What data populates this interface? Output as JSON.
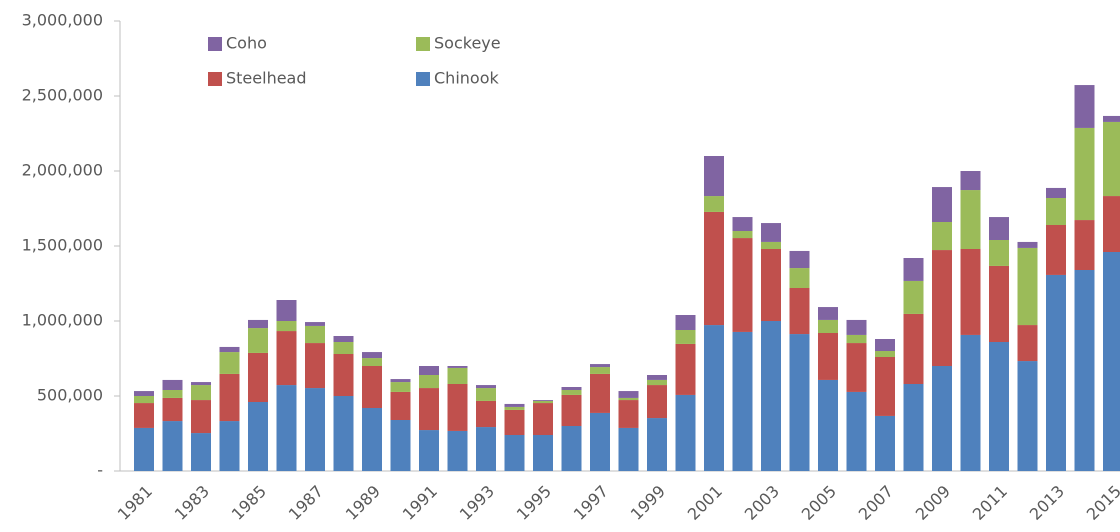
{
  "chart_data": {
    "type": "stacked_bar",
    "categories": [
      "1981",
      null,
      "1983",
      null,
      "1985",
      null,
      "1987",
      null,
      "1989",
      null,
      "1991",
      null,
      "1993",
      null,
      "1995",
      null,
      "1997",
      null,
      "1999",
      null,
      "2001",
      null,
      "2003",
      null,
      "2005",
      null,
      "2007",
      null,
      "2009",
      null,
      "2011",
      null,
      "2013",
      null,
      "2015"
    ],
    "series": [
      {
        "name": "Chinook",
        "color": "#4f81bd",
        "values": [
          287000,
          333000,
          253000,
          333000,
          460000,
          573000,
          553000,
          500000,
          420000,
          340000,
          273000,
          267000,
          293000,
          240000,
          240000,
          300000,
          387000,
          287000,
          353000,
          507000,
          973000,
          927000,
          1000000,
          913000,
          607000,
          527000,
          367000,
          580000,
          700000,
          907000,
          860000,
          733000,
          1307000,
          1340000,
          1460000
        ]
      },
      {
        "name": "Steelhead",
        "color": "#c0504d",
        "values": [
          166000,
          154000,
          220000,
          314000,
          327000,
          360000,
          300000,
          280000,
          280000,
          187000,
          280000,
          313000,
          174000,
          167000,
          213000,
          207000,
          260000,
          186000,
          220000,
          340000,
          754000,
          626000,
          480000,
          307000,
          313000,
          326000,
          393000,
          467000,
          773000,
          573000,
          507000,
          240000,
          333000,
          333000,
          373000
        ]
      },
      {
        "name": "Sockeye",
        "color": "#9bbb59",
        "values": [
          47000,
          53000,
          100000,
          146000,
          166000,
          67000,
          114000,
          80000,
          53000,
          66000,
          87000,
          107000,
          86000,
          20000,
          14000,
          33000,
          46000,
          14000,
          34000,
          93000,
          106000,
          47000,
          47000,
          133000,
          87000,
          54000,
          40000,
          220000,
          187000,
          393000,
          173000,
          514000,
          180000,
          614000,
          494000
        ]
      },
      {
        "name": "Coho",
        "color": "#8064a2",
        "values": [
          33000,
          67000,
          20000,
          34000,
          54000,
          140000,
          26000,
          40000,
          40000,
          20000,
          60000,
          13000,
          20000,
          20000,
          6000,
          20000,
          20000,
          46000,
          33000,
          100000,
          267000,
          93000,
          126000,
          114000,
          86000,
          100000,
          80000,
          153000,
          233000,
          127000,
          153000,
          40000,
          67000,
          286000,
          40000
        ]
      }
    ],
    "ylim": [
      0,
      3000000
    ],
    "yticks": [
      {
        "value": 0,
        "label": "-"
      },
      {
        "value": 500000,
        "label": "500,000"
      },
      {
        "value": 1000000,
        "label": "1,000,000"
      },
      {
        "value": 1500000,
        "label": "1,500,000"
      },
      {
        "value": 2000000,
        "label": "2,000,000"
      },
      {
        "value": 2500000,
        "label": "2,500,000"
      },
      {
        "value": 3000000,
        "label": "3,000,000"
      }
    ],
    "grid": false,
    "legend": "top-left"
  }
}
